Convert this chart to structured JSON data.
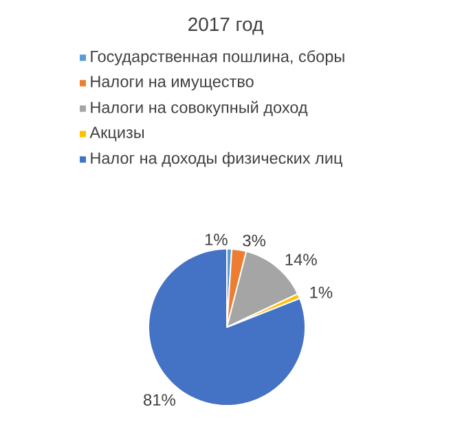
{
  "chart_data": {
    "type": "pie",
    "title": "2017 год",
    "categories": [
      "Государственная пошлина, сборы",
      "Налоги на имущество",
      "Налоги на совокупный доход",
      "Акцизы",
      "Налог на доходы физических лиц"
    ],
    "values": [
      1,
      3,
      14,
      1,
      81
    ],
    "value_labels": [
      "1%",
      "3%",
      "14%",
      "1%",
      "81%"
    ],
    "colors": [
      "#5b9bd5",
      "#ed7d31",
      "#a5a5a5",
      "#ffc000",
      "#4472c4"
    ],
    "legend": "top"
  }
}
